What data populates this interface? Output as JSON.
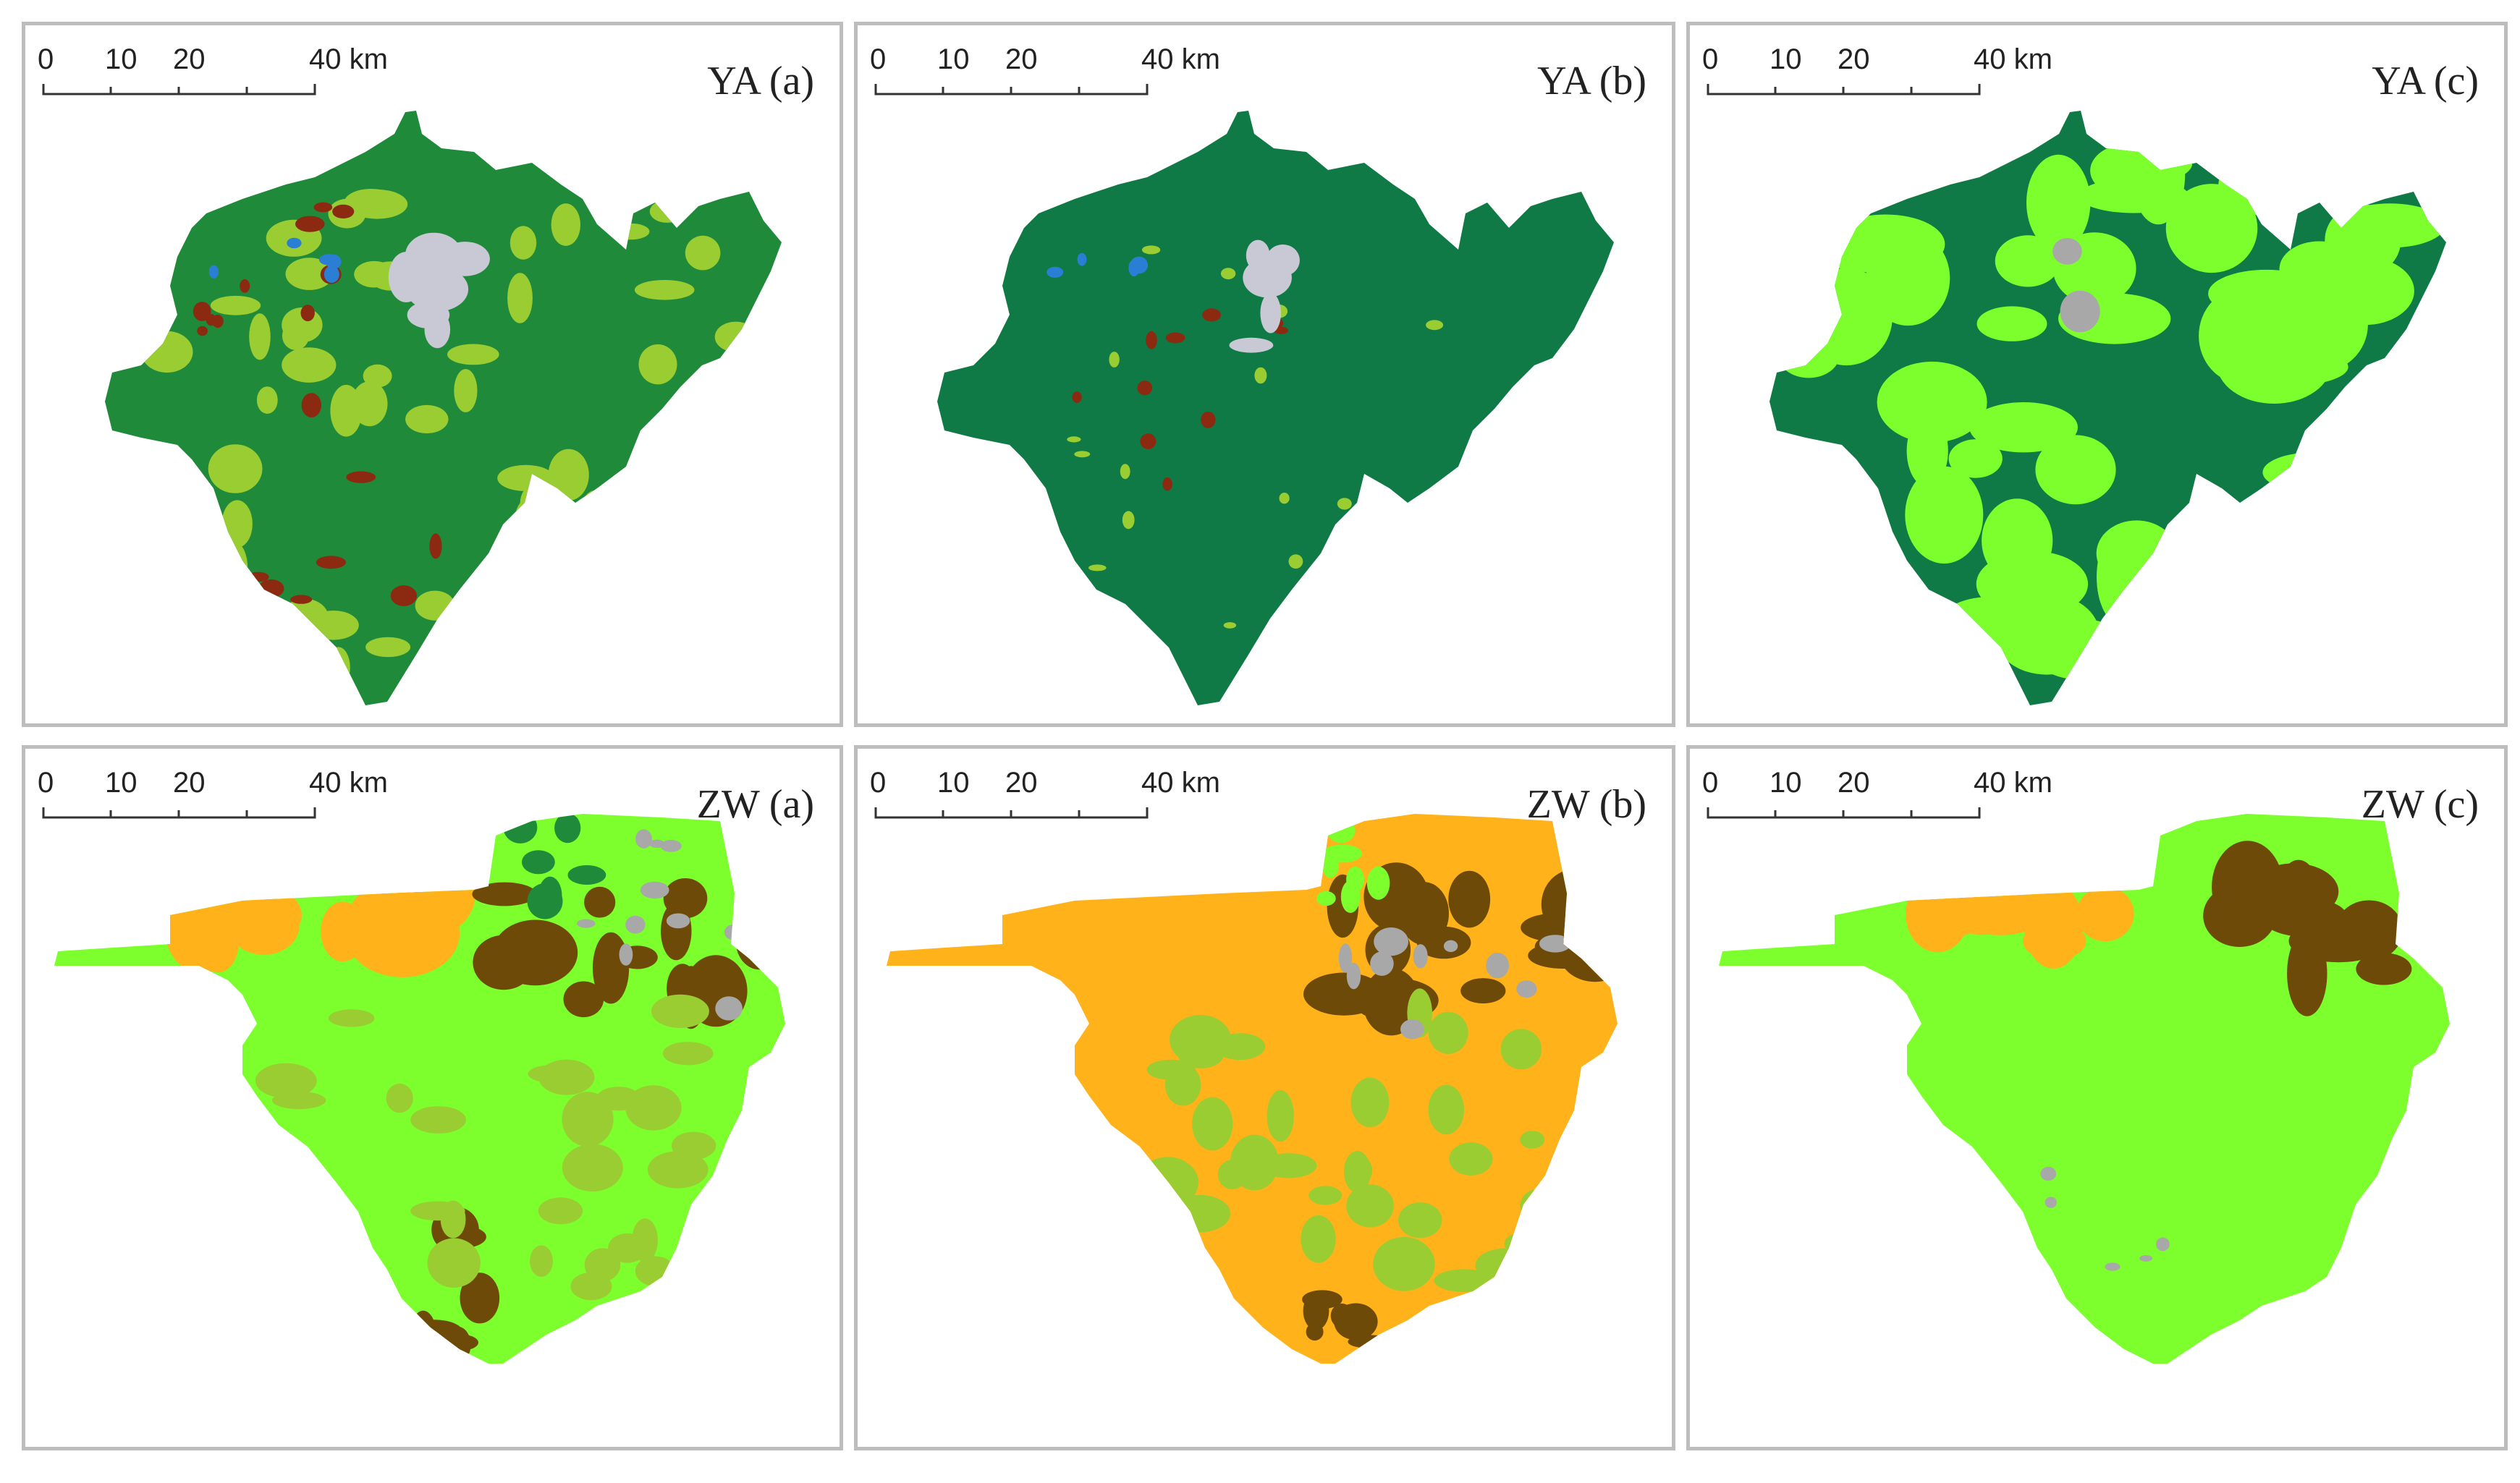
{
  "panels": [
    {
      "title": "YA (a)",
      "scale_labels": [
        "0",
        "10",
        "20",
        "40 km"
      ],
      "palette": "ya_a"
    },
    {
      "title": "YA (b)",
      "scale_labels": [
        "0",
        "10",
        "20",
        "40 km"
      ],
      "palette": "ya_b"
    },
    {
      "title": "YA (c)",
      "scale_labels": [
        "0",
        "10",
        "20",
        "40 km"
      ],
      "palette": "ya_c"
    },
    {
      "title": "ZW (a)",
      "scale_labels": [
        "0",
        "10",
        "20",
        "40 km"
      ],
      "palette": "zw_a"
    },
    {
      "title": "ZW (b)",
      "scale_labels": [
        "0",
        "10",
        "20",
        "40 km"
      ],
      "palette": "zw_b"
    },
    {
      "title": "ZW (c)",
      "scale_labels": [
        "0",
        "10",
        "20",
        "40 km"
      ],
      "palette": "zw_c"
    }
  ],
  "colors": {
    "forest_dark": "#0f7a45",
    "forest": "#1f8a3a",
    "grass_yellowgreen": "#9acd32",
    "grass_bright": "#7cff2c",
    "built_up": "#c9c9d6",
    "bare_grey": "#a8a8a8",
    "water": "#2a7fd4",
    "soil_red": "#8b2a10",
    "cropland_orange": "#ffb21a",
    "cropland_brown": "#6e4a08",
    "border": "#bdbdbd"
  }
}
